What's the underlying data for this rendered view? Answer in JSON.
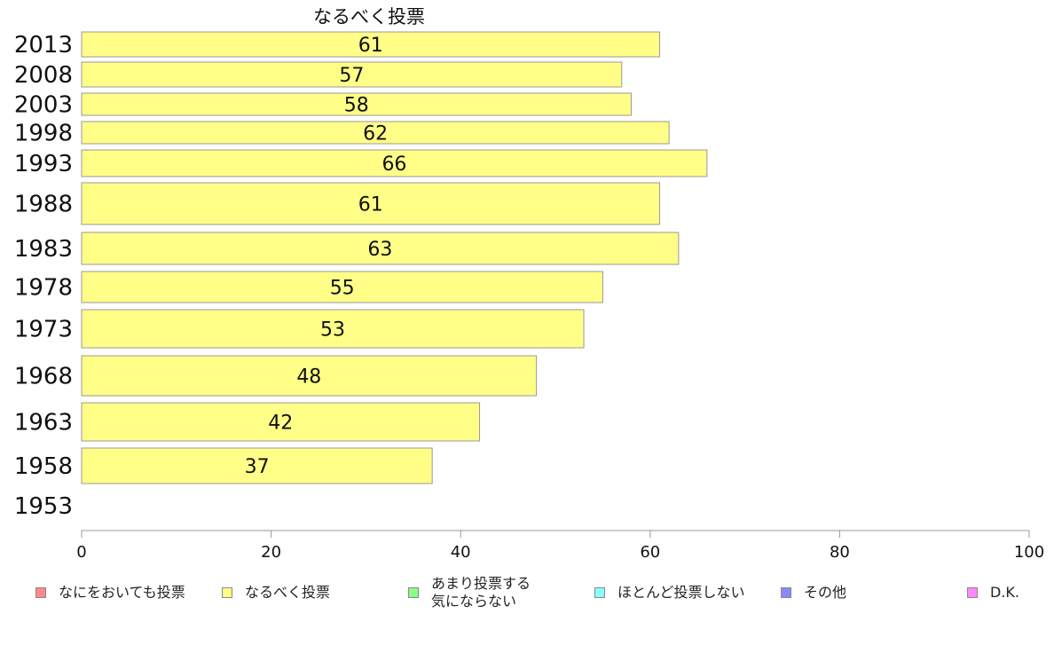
{
  "chart_data": {
    "type": "bar",
    "orientation": "horizontal",
    "title": "なるべく投票",
    "categories": [
      "2013",
      "2008",
      "2003",
      "1998",
      "1993",
      "1988",
      "1983",
      "1978",
      "1973",
      "1968",
      "1963",
      "1958",
      "1953"
    ],
    "series": [
      {
        "name": "なるべく投票",
        "values": [
          61,
          57,
          58,
          62,
          66,
          61,
          63,
          55,
          53,
          48,
          42,
          37,
          null
        ],
        "color": "#ffff88"
      }
    ],
    "xlim": [
      0,
      100
    ],
    "xticks": [
      "0",
      "20",
      "40",
      "60",
      "80",
      "100"
    ],
    "grid": false,
    "legend_position": "bottom"
  },
  "legend": [
    {
      "label": "なにをおいても投票",
      "color": "#ff8888"
    },
    {
      "label": "なるべく投票",
      "color": "#ffff88"
    },
    {
      "label": "あまり投票する\n気にならない",
      "color": "#88ff88"
    },
    {
      "label": "ほとんど投票しない",
      "color": "#88ffff"
    },
    {
      "label": "その他",
      "color": "#8888ff"
    },
    {
      "label": "D.K.",
      "color": "#ff88ff"
    }
  ]
}
